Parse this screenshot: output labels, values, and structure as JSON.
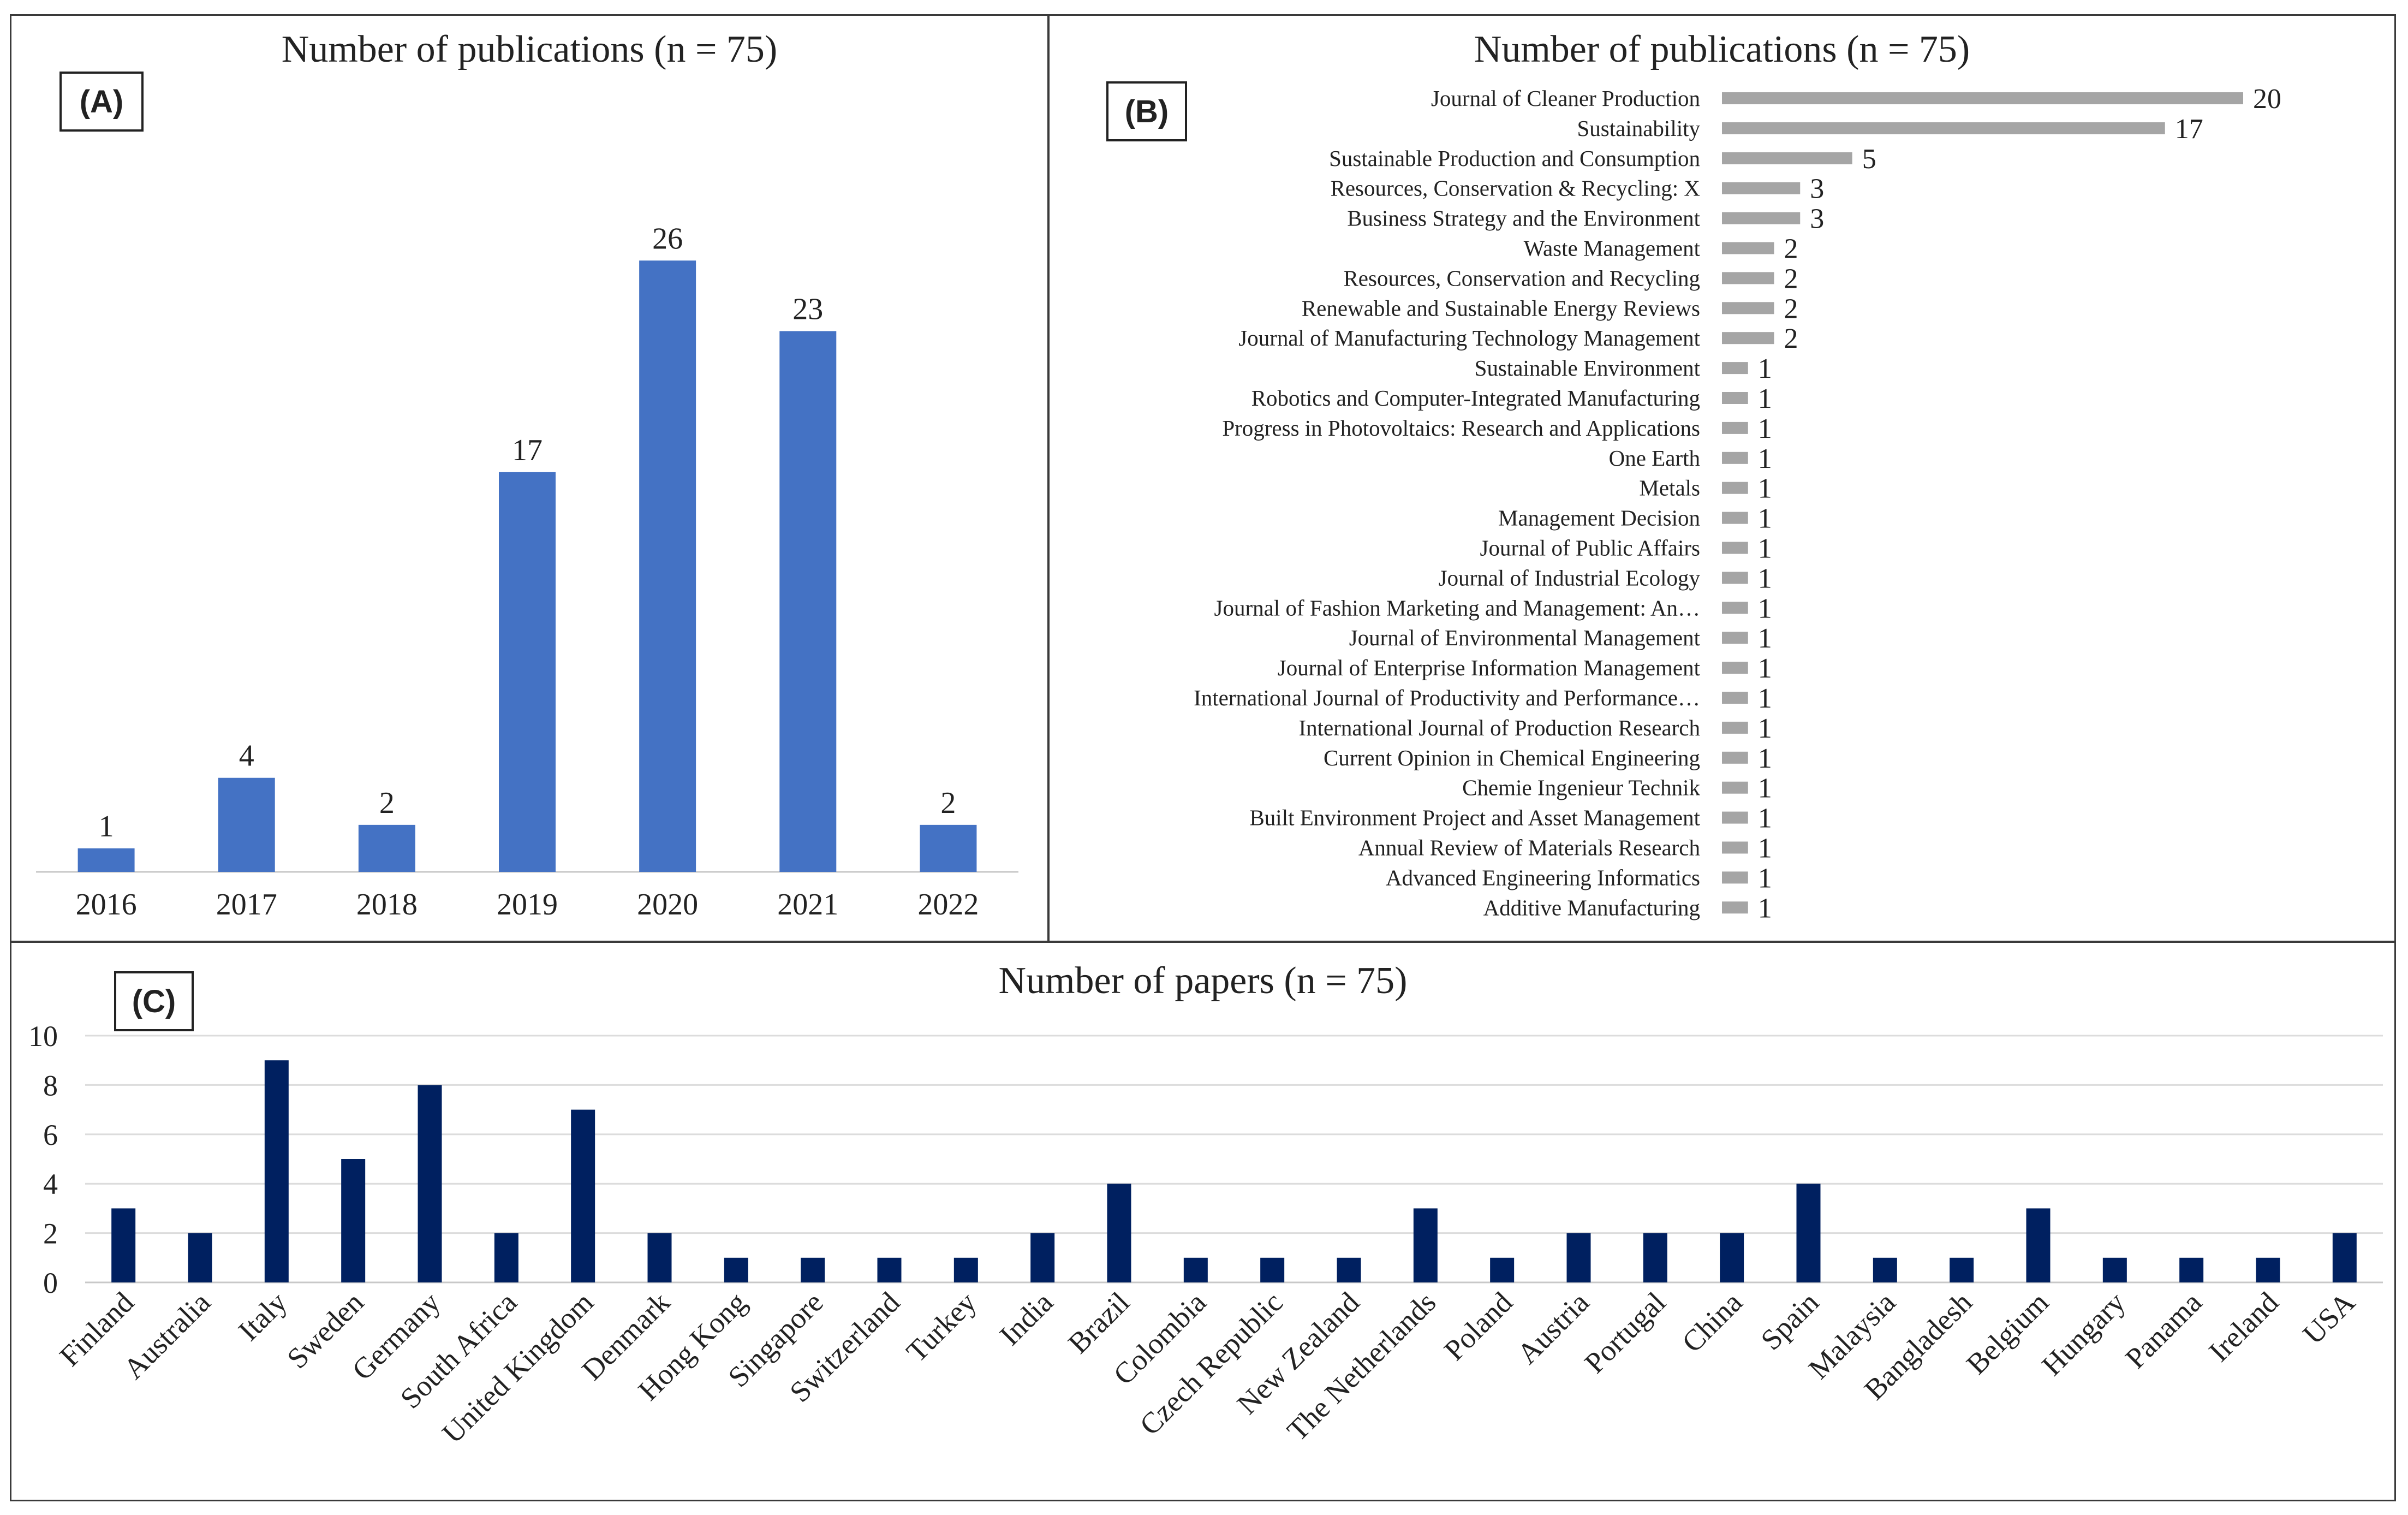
{
  "panels": {
    "a": {
      "tag": "(A)",
      "chart_data": {
        "type": "bar",
        "title": "Number of publications (n = 75)",
        "categories": [
          "2016",
          "2017",
          "2018",
          "2019",
          "2020",
          "2021",
          "2022"
        ],
        "values": [
          1,
          4,
          2,
          17,
          26,
          23,
          2
        ],
        "xlabel": "",
        "ylabel": "",
        "ylim": [
          0,
          30
        ],
        "color": "#4472C4"
      }
    },
    "b": {
      "tag": "(B)",
      "chart_data": {
        "type": "bar",
        "orientation": "horizontal",
        "title": "Number of publications (n = 75)",
        "categories": [
          "Journal of Cleaner Production",
          "Sustainability",
          "Sustainable Production and Consumption",
          "Resources, Conservation & Recycling: X",
          "Business Strategy and the Environment",
          "Waste Management",
          "Resources, Conservation and Recycling",
          "Renewable and Sustainable Energy Reviews",
          "Journal of Manufacturing Technology Management",
          "Sustainable Environment",
          "Robotics and Computer-Integrated Manufacturing",
          "Progress in Photovoltaics: Research and Applications",
          "One Earth",
          "Metals",
          "Management Decision",
          "Journal of Public Affairs",
          "Journal of Industrial Ecology",
          "Journal of Fashion Marketing and Management: An…",
          "Journal of Environmental Management",
          "Journal of Enterprise Information Management",
          "International Journal of Productivity and Performance…",
          "International Journal of Production Research",
          "Current Opinion in Chemical Engineering",
          "Chemie Ingenieur Technik",
          "Built Environment Project and Asset Management",
          "Annual Review of Materials Research",
          "Advanced Engineering Informatics",
          "Additive Manufacturing"
        ],
        "values": [
          20,
          17,
          5,
          3,
          3,
          2,
          2,
          2,
          2,
          1,
          1,
          1,
          1,
          1,
          1,
          1,
          1,
          1,
          1,
          1,
          1,
          1,
          1,
          1,
          1,
          1,
          1,
          1
        ],
        "xlim": [
          0,
          20
        ],
        "color": "#A5A5A5"
      }
    },
    "c": {
      "tag": "(C)",
      "chart_data": {
        "type": "bar",
        "title": "Number of papers (n = 75)",
        "categories": [
          "Finland",
          "Australia",
          "Italy",
          "Sweden",
          "Germany",
          "South Africa",
          "United Kingdom",
          "Denmark",
          "Hong Kong",
          "Singapore",
          "Switzerland",
          "Turkey",
          "India",
          "Brazil",
          "Colombia",
          "Czech Republic",
          "New Zealand",
          "The Netherlands",
          "Poland",
          "Austria",
          "Portugal",
          "China",
          "Spain",
          "Malaysia",
          "Bangladesh",
          "Belgium",
          "Hungary",
          "Panama",
          "Ireland",
          "USA"
        ],
        "values": [
          3,
          2,
          9,
          5,
          8,
          2,
          7,
          2,
          1,
          1,
          1,
          1,
          2,
          4,
          1,
          1,
          1,
          3,
          1,
          2,
          2,
          2,
          4,
          1,
          1,
          3,
          1,
          1,
          1,
          2
        ],
        "yticks": [
          "0",
          "2",
          "4",
          "6",
          "8",
          "10"
        ],
        "ylim": [
          0,
          10
        ],
        "grid": true,
        "color": "#002060"
      }
    }
  }
}
